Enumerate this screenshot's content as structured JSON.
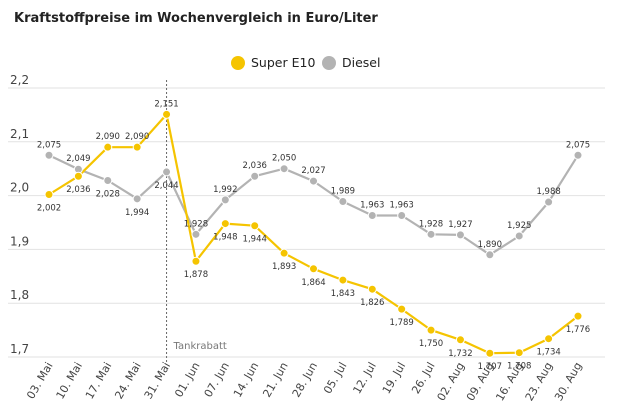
{
  "chart_data": {
    "type": "line",
    "title": "Kraftstoffpreise im Wochenvergleich in Euro/Liter",
    "categories": [
      "03. Mai",
      "10. Mai",
      "17. Mai",
      "24. Mai",
      "31. Mai",
      "01. Jun",
      "07. Jun",
      "14. Jun",
      "21. Jun",
      "28. Jun",
      "05. Jul",
      "12. Jul",
      "19. Jul",
      "26. Jul",
      "02. Aug",
      "09. Aug",
      "16. Aug",
      "23. Aug",
      "30. Aug"
    ],
    "series": [
      {
        "name": "Super E10",
        "color": "#f5c400",
        "values": [
          2.002,
          2.036,
          2.09,
          2.09,
          2.151,
          1.878,
          1.948,
          1.944,
          1.893,
          1.864,
          1.843,
          1.826,
          1.789,
          1.75,
          1.732,
          1.707,
          1.708,
          1.734,
          1.776
        ],
        "labels": [
          "2,002",
          "2,036",
          "2,090",
          "2,090",
          "2,151",
          "1,878",
          "1,948",
          "1,944",
          "1,893",
          "1,864",
          "1,843",
          "1,826",
          "1,789",
          "1,750",
          "1,732",
          "1,707",
          "1,708",
          "1,734",
          "1,776"
        ]
      },
      {
        "name": "Diesel",
        "color": "#b3b3b3",
        "values": [
          2.075,
          2.049,
          2.028,
          1.994,
          2.044,
          1.928,
          1.992,
          2.036,
          2.05,
          2.027,
          1.989,
          1.963,
          1.963,
          1.928,
          1.927,
          1.89,
          1.925,
          1.988,
          2.075
        ],
        "labels": [
          "2,075",
          "2,049",
          "2,028",
          "1,994",
          "2,044",
          "1,928",
          "1,992",
          "2,036",
          "2,050",
          "2,027",
          "1,989",
          "1,963",
          "1,963",
          "1,928",
          "1,927",
          "1,890",
          "1,925",
          "1,988",
          "2,075"
        ]
      }
    ],
    "ylim": [
      1.7,
      2.2
    ],
    "yticks": [
      1.7,
      1.8,
      1.9,
      2.0,
      2.1,
      2.2
    ],
    "ytick_labels": [
      "1,7",
      "1,8",
      "1,9",
      "2,0",
      "2,1",
      "2,2"
    ],
    "grid": true,
    "legend_position": "top-center",
    "annotation": {
      "text": "Tankrabatt",
      "category": "31. Mai"
    }
  }
}
